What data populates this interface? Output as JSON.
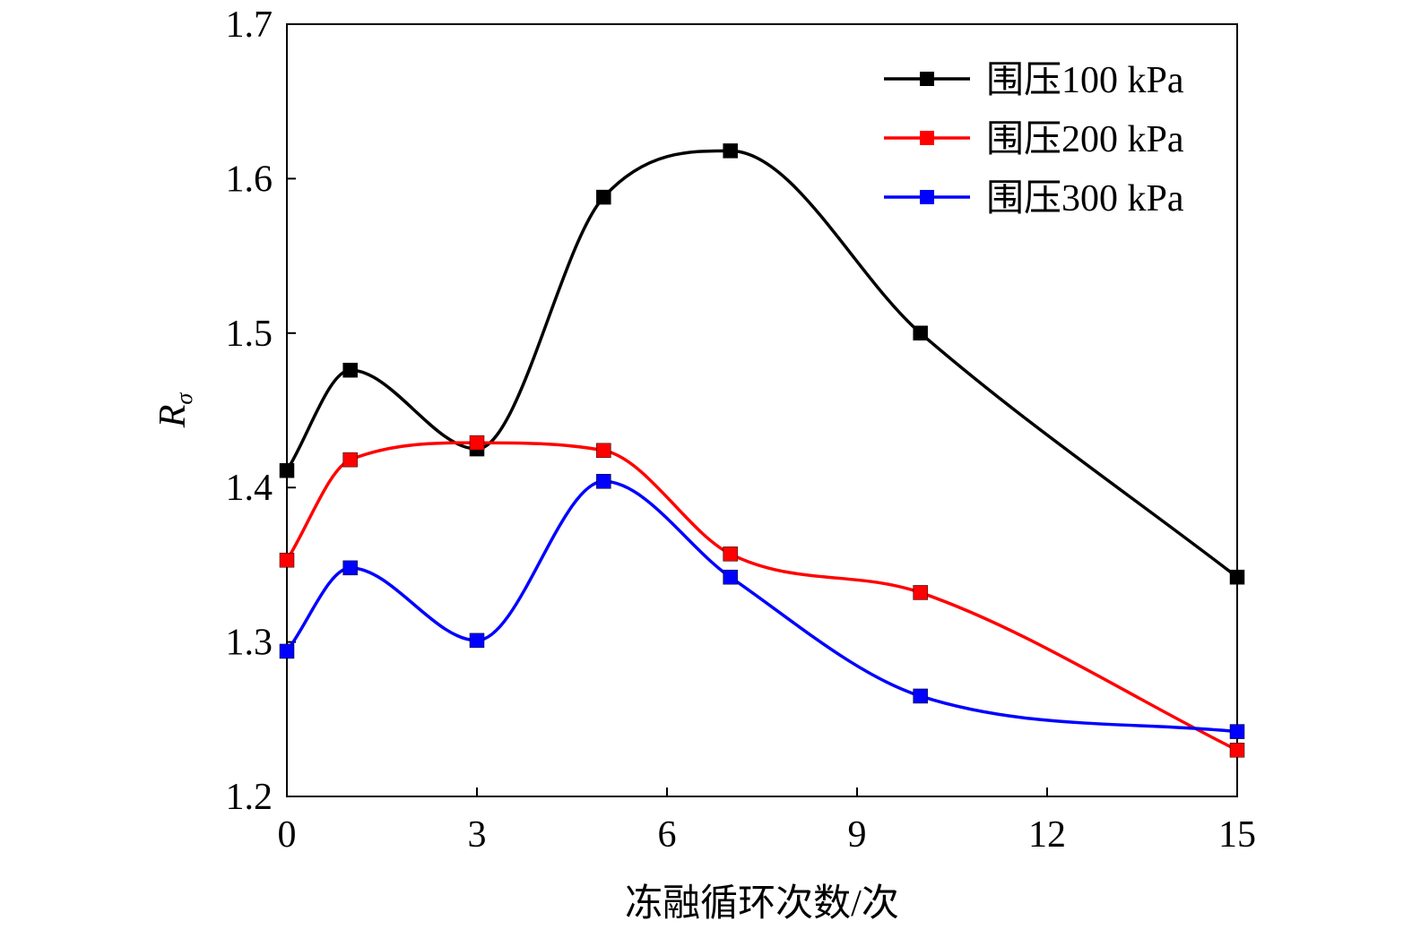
{
  "chart_data": {
    "type": "line",
    "title": "",
    "xlabel": "冻融循环次数/次",
    "ylabel": "R",
    "ylabel_subscript": "σ",
    "xlim": [
      0,
      15
    ],
    "ylim": [
      1.2,
      1.7
    ],
    "xticks": [
      0,
      3,
      6,
      9,
      12,
      15
    ],
    "yticks": [
      1.2,
      1.3,
      1.4,
      1.5,
      1.6,
      1.7
    ],
    "xtick_labels": [
      "0",
      "3",
      "6",
      "9",
      "12",
      "15"
    ],
    "ytick_labels": [
      "1.2",
      "1.3",
      "1.4",
      "1.5",
      "1.6",
      "1.7"
    ],
    "grid": false,
    "legend_position": "top-right",
    "x": [
      0,
      1,
      3,
      5,
      7,
      10,
      15
    ],
    "series": [
      {
        "name": "围压100 kPa",
        "color": "#000000",
        "marker": "square",
        "values": [
          1.411,
          1.476,
          1.425,
          1.588,
          1.618,
          1.5,
          1.342
        ]
      },
      {
        "name": "围压200 kPa",
        "color": "#ff0000",
        "marker": "square",
        "values": [
          1.353,
          1.418,
          1.429,
          1.424,
          1.357,
          1.332,
          1.23
        ]
      },
      {
        "name": "围压300 kPa",
        "color": "#0000ff",
        "marker": "square",
        "values": [
          1.294,
          1.348,
          1.301,
          1.404,
          1.342,
          1.265,
          1.242
        ]
      }
    ]
  }
}
